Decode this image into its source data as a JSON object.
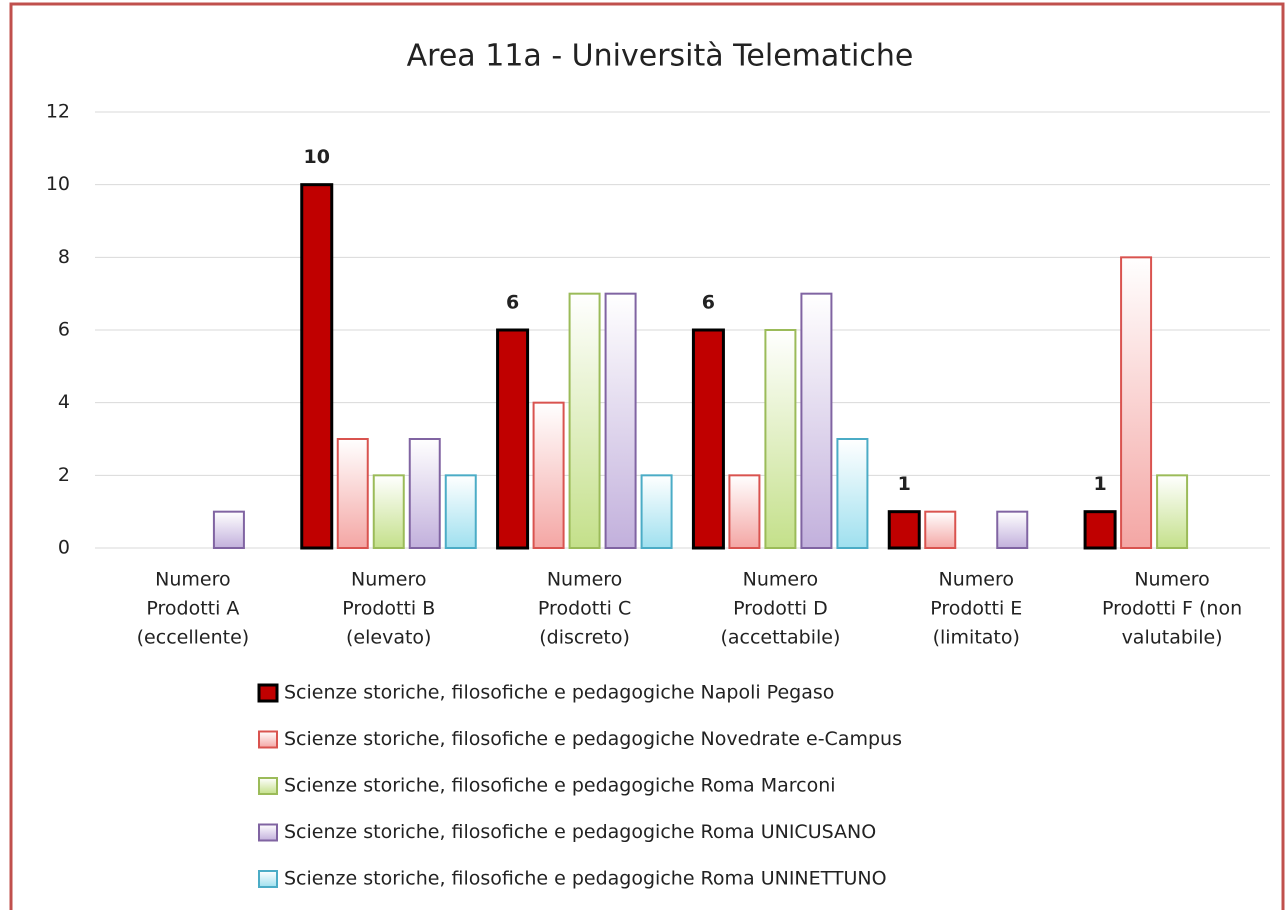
{
  "chart_data": {
    "type": "bar",
    "title": "Area 11a - Università Telematiche",
    "categories": [
      [
        "Numero",
        "Prodotti A",
        "(eccellente)"
      ],
      [
        "Numero",
        "Prodotti B",
        "(elevato)"
      ],
      [
        "Numero",
        "Prodotti C",
        "(discreto)"
      ],
      [
        "Numero",
        "Prodotti D",
        "(accettabile)"
      ],
      [
        "Numero",
        "Prodotti E",
        "(limitato)"
      ],
      [
        "Numero",
        "Prodotti F (non",
        "valutabile)"
      ]
    ],
    "series": [
      {
        "name": "Scienze storiche, filosofiche e pedagogiche Napoli Pegaso",
        "color": "#c00000",
        "edge": "#000000",
        "values": [
          0,
          10,
          6,
          6,
          1,
          1
        ],
        "value_labels": [
          null,
          "10",
          "6",
          "6",
          "1",
          "1"
        ]
      },
      {
        "name": "Scienze storiche, filosofiche e pedagogiche Novedrate e-Campus",
        "color": "#f4a6a4",
        "edge": "#d9534f",
        "values": [
          0,
          3,
          4,
          2,
          1,
          8
        ]
      },
      {
        "name": "Scienze storiche, filosofiche e pedagogiche Roma Marconi",
        "color": "#c4e08a",
        "edge": "#9bbb59",
        "values": [
          0,
          2,
          7,
          6,
          0,
          2
        ]
      },
      {
        "name": "Scienze storiche, filosofiche e pedagogiche Roma UNICUSANO",
        "color": "#c2b0dc",
        "edge": "#8064a2",
        "values": [
          1,
          3,
          7,
          7,
          1,
          0
        ]
      },
      {
        "name": "Scienze storiche, filosofiche e pedagogiche Roma UNINETTUNO",
        "color": "#9fe0ef",
        "edge": "#4bacc6",
        "values": [
          0,
          2,
          2,
          3,
          0,
          0
        ]
      }
    ],
    "ylim": [
      0,
      12
    ],
    "yticks": [
      0,
      2,
      4,
      6,
      8,
      10,
      12
    ],
    "grid": true
  }
}
